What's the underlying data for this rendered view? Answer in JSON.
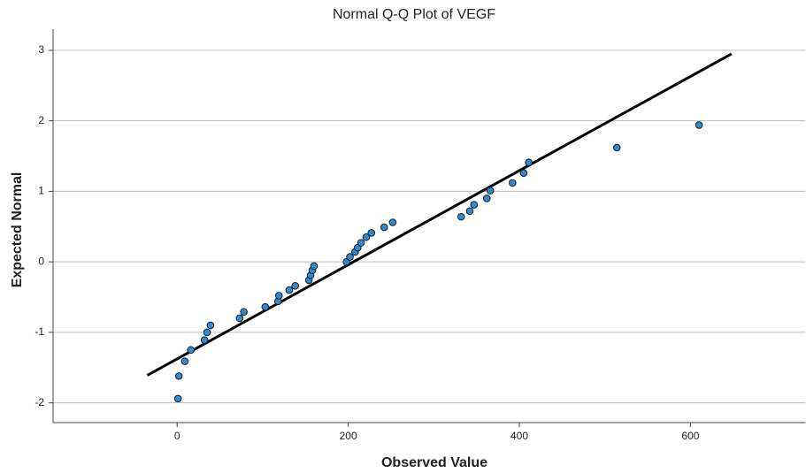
{
  "chart_data": {
    "type": "scatter",
    "title": "Normal Q-Q Plot of VEGF",
    "x_label": "Observed Value",
    "y_label": "Expected Normal",
    "xlim": [
      -145,
      734
    ],
    "ylim": [
      -2.28,
      3.3
    ],
    "xticks": [
      0,
      200,
      400,
      600
    ],
    "yticks": [
      -2,
      -1,
      0,
      1,
      2,
      3
    ],
    "grid": true,
    "series": [
      {
        "color": "#2b8cd6",
        "x": [
          1,
          2,
          9,
          16,
          32,
          35,
          39,
          73,
          78,
          103,
          118,
          119,
          131,
          138,
          154,
          156,
          158,
          160,
          198,
          202,
          208,
          211,
          215,
          221,
          227,
          242,
          252,
          332,
          342,
          347,
          362,
          366,
          392,
          405,
          411,
          514,
          610
        ],
        "values": [
          -1.94,
          -1.62,
          -1.41,
          -1.25,
          -1.11,
          -1.0,
          -0.9,
          -0.8,
          -0.71,
          -0.64,
          -0.56,
          -0.48,
          -0.4,
          -0.34,
          -0.26,
          -0.19,
          -0.12,
          -0.06,
          0.0,
          0.07,
          0.14,
          0.2,
          0.27,
          0.35,
          0.41,
          0.49,
          0.56,
          0.64,
          0.72,
          0.81,
          0.9,
          1.01,
          1.12,
          1.26,
          1.41,
          1.62,
          1.94
        ]
      }
    ],
    "reference_line": {
      "color": "#000000",
      "x": [
        -35,
        648
      ],
      "values": [
        -1.61,
        2.95
      ]
    }
  }
}
